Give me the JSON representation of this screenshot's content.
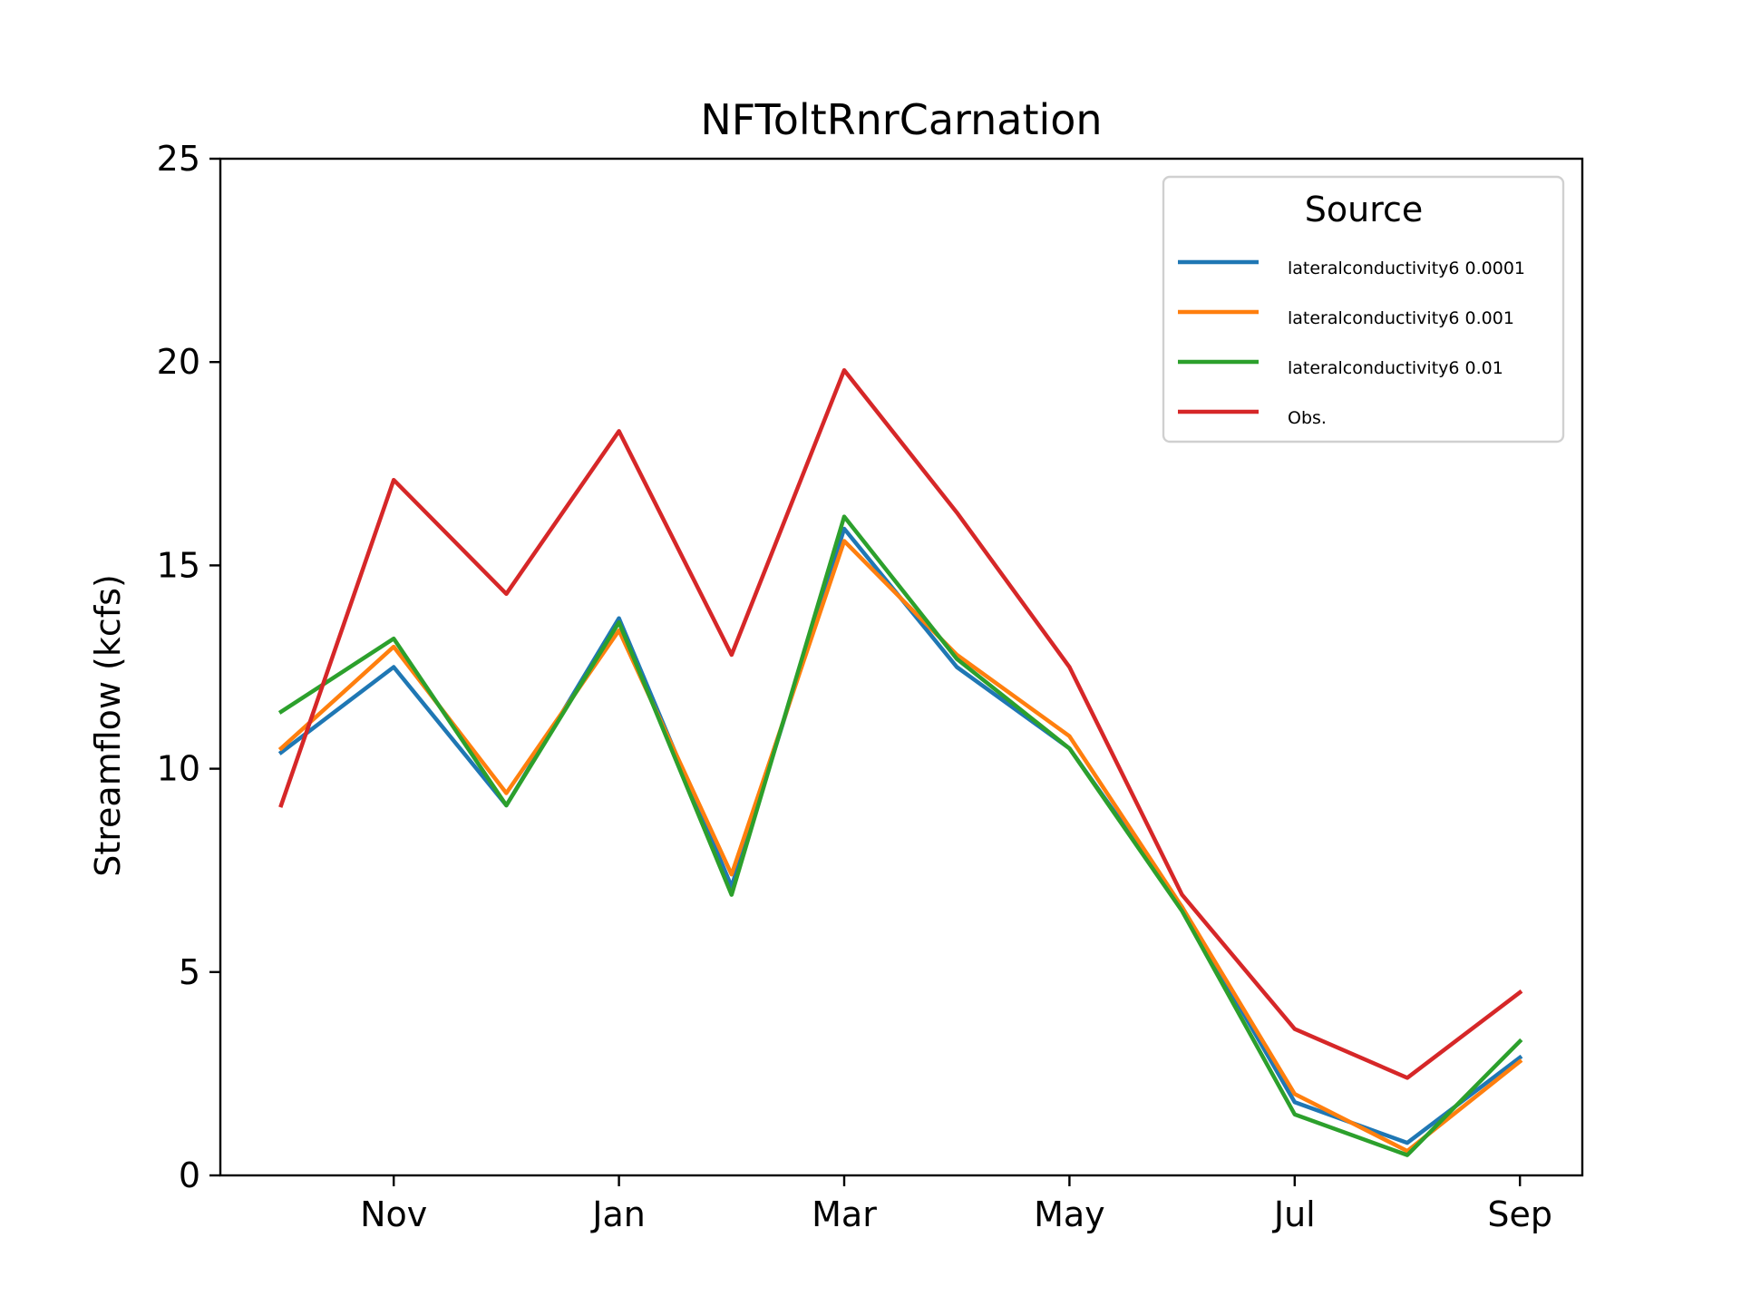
{
  "chart_data": {
    "type": "line",
    "title": "NFToltRnrCarnation",
    "xlabel": "",
    "ylabel": "Streamflow (kcfs)",
    "ylim": [
      0,
      25
    ],
    "yticks": [
      0,
      5,
      10,
      15,
      20,
      25
    ],
    "x": [
      "2011-10",
      "2011-11",
      "2011-12",
      "2012-01",
      "2012-02",
      "2012-03",
      "2012-04",
      "2012-05",
      "2012-06",
      "2012-07",
      "2012-08",
      "2012-09"
    ],
    "xticks": [
      {
        "x": "2011-11",
        "label": "Nov"
      },
      {
        "x": "2012-01",
        "label": "Jan"
      },
      {
        "x": "2012-03",
        "label": "Mar"
      },
      {
        "x": "2012-05",
        "label": "May"
      },
      {
        "x": "2012-07",
        "label": "Jul"
      },
      {
        "x": "2012-09",
        "label": "Sep"
      }
    ],
    "grid": false,
    "legend": {
      "title": "Source",
      "position": "top-right"
    },
    "series": [
      {
        "name": "lateralconductivity6 0.0001",
        "color": "#1f77b4",
        "values": [
          10.4,
          12.5,
          9.1,
          13.7,
          7.1,
          15.9,
          12.5,
          10.5,
          6.6,
          1.8,
          0.8,
          2.9
        ]
      },
      {
        "name": "lateralconductivity6 0.001",
        "color": "#ff7f0e",
        "values": [
          10.5,
          13.0,
          9.4,
          13.4,
          7.4,
          15.6,
          12.8,
          10.8,
          6.6,
          2.0,
          0.6,
          2.8
        ]
      },
      {
        "name": "lateralconductivity6 0.01",
        "color": "#2ca02c",
        "values": [
          11.4,
          13.2,
          9.1,
          13.6,
          6.9,
          16.2,
          12.7,
          10.5,
          6.5,
          1.5,
          0.5,
          3.3
        ]
      },
      {
        "name": "Obs.",
        "color": "#d62728",
        "values": [
          9.1,
          17.1,
          14.3,
          18.3,
          12.8,
          19.8,
          16.3,
          12.5,
          6.9,
          3.6,
          2.4,
          4.5
        ]
      }
    ]
  }
}
